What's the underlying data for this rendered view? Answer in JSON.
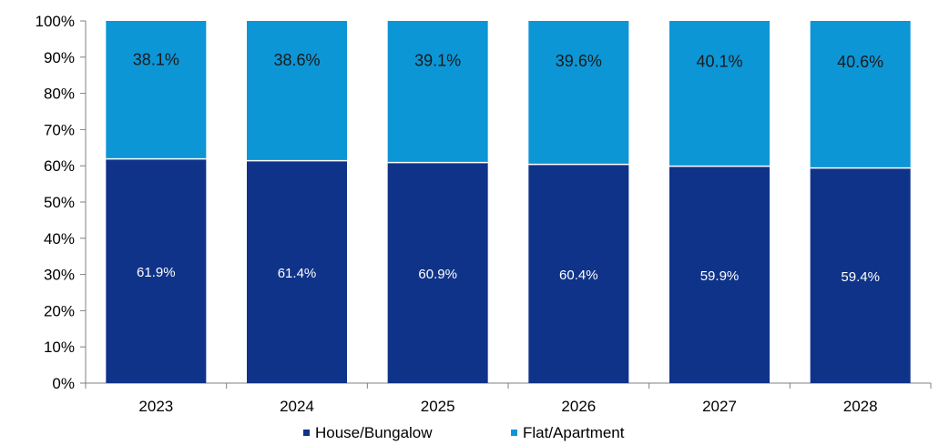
{
  "chart_data": {
    "type": "bar",
    "stacked": true,
    "categories": [
      "2023",
      "2024",
      "2025",
      "2026",
      "2027",
      "2028"
    ],
    "series": [
      {
        "name": "House/Bungalow",
        "values": [
          61.9,
          61.4,
          60.9,
          60.4,
          59.9,
          59.4
        ],
        "labels": [
          "61.9%",
          "61.4%",
          "60.9%",
          "60.4%",
          "59.9%",
          "59.4%"
        ],
        "color": "#0f3389",
        "label_color": "#ffffff"
      },
      {
        "name": "Flat/Apartment",
        "values": [
          38.1,
          38.6,
          39.1,
          39.6,
          40.1,
          40.6
        ],
        "labels": [
          "38.1%",
          "38.6%",
          "39.1%",
          "39.6%",
          "40.1%",
          "40.6%"
        ],
        "color": "#0c96d6",
        "label_color": "#1a1a1a"
      }
    ],
    "y_ticks": [
      "0%",
      "10%",
      "20%",
      "30%",
      "40%",
      "50%",
      "60%",
      "70%",
      "80%",
      "90%",
      "100%"
    ],
    "ylim": [
      0,
      100
    ],
    "title": "",
    "xlabel": "",
    "ylabel": "",
    "grid": false,
    "legend_position": "bottom"
  }
}
